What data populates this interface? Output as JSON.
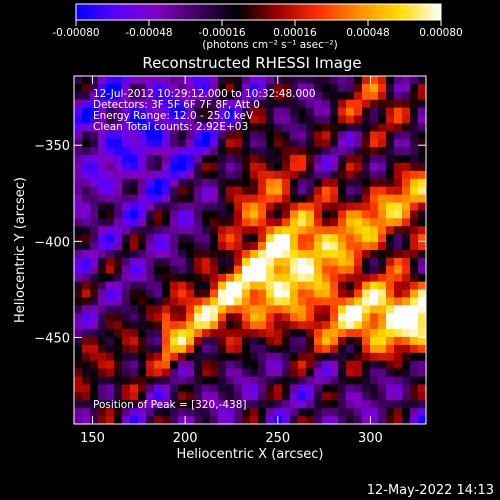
{
  "colorbar": {
    "tick_labels": [
      "-0.00080",
      "-0.00048",
      "-0.00016",
      "0.00016",
      "0.00048",
      "0.00080"
    ],
    "range": [
      -0.0008,
      0.0008
    ],
    "units_label": "(photons cm⁻² s⁻¹ asec⁻²)",
    "colors": [
      "#0000ff",
      "#5a00ff",
      "#8000c0",
      "#400060",
      "#000000",
      "#a00000",
      "#ff3000",
      "#ff9000",
      "#ffdd00",
      "#ffffff"
    ]
  },
  "chart_data": {
    "type": "heatmap",
    "title": "Reconstructed RHESSI Image",
    "xlabel": "Heliocentric X (arcsec)",
    "ylabel": "Heliocentric Y (arcsec)",
    "xlim": [
      140,
      330
    ],
    "ylim": [
      -495,
      -314
    ],
    "xticks": [
      150,
      200,
      250,
      300
    ],
    "yticks": [
      -350,
      -400,
      -450
    ],
    "info_lines": [
      "12-Jul-2012 10:29:12.000 to 10:32:48.000",
      "Detectors: 3F 5F 6F 7F 8F, Att 0",
      "Energy Range: 12.0 - 25.0 keV",
      "Clean     Total counts: 2.92E+03"
    ],
    "peak_label": "Position of Peak = [320,-438]",
    "peak": [
      320,
      -438
    ],
    "bright_region": "diagonal band of emission from lower-right (peak ~[320,-438]) extending up-left toward [230,-380]"
  },
  "footer": {
    "timestamp": "12-May-2022 14:13"
  }
}
